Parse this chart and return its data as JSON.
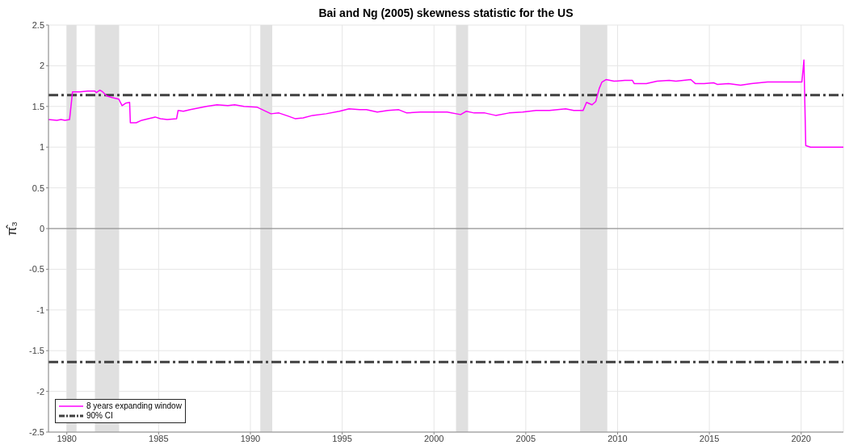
{
  "chart_data": {
    "type": "line",
    "title": "Bai and Ng (2005) skewness statistic for the US",
    "ylabel": "π̂₃",
    "x": [
      1979.0,
      1979.46,
      1979.68,
      1979.9,
      1980.15,
      1980.31,
      1980.7,
      1981.14,
      1981.51,
      1981.61,
      1981.8,
      1981.95,
      1982.17,
      1982.46,
      1982.83,
      1983.01,
      1983.2,
      1983.42,
      1983.46,
      1983.78,
      1984.08,
      1984.44,
      1984.81,
      1985.1,
      1985.47,
      1985.98,
      1986.06,
      1986.35,
      1986.72,
      1987.16,
      1987.6,
      1988.18,
      1988.77,
      1989.14,
      1989.65,
      1990.38,
      1991.12,
      1991.55,
      1992.07,
      1992.43,
      1992.87,
      1993.39,
      1994.12,
      1994.85,
      1995.37,
      1995.95,
      1996.32,
      1996.91,
      1997.49,
      1998.08,
      1998.52,
      1999.25,
      1999.99,
      2000.72,
      2001.45,
      2001.75,
      2002.19,
      2002.77,
      2003.36,
      2004.09,
      2004.83,
      2005.56,
      2006.29,
      2006.73,
      2007.17,
      2007.61,
      2008.12,
      2008.31,
      2008.61,
      2008.81,
      2009.0,
      2009.15,
      2009.37,
      2009.81,
      2010.39,
      2010.81,
      2010.91,
      2011.57,
      2012.15,
      2012.81,
      2013.18,
      2013.99,
      2014.24,
      2014.72,
      2015.23,
      2015.45,
      2016.04,
      2016.7,
      2017.29,
      2018.17,
      2018.9,
      2020.04,
      2020.15,
      2020.25,
      2020.51,
      2022.3
    ],
    "series": [
      {
        "name": "8 years expanding window",
        "color": "#ff00ff",
        "values": [
          1.34,
          1.33,
          1.34,
          1.33,
          1.34,
          1.68,
          1.68,
          1.69,
          1.69,
          1.67,
          1.7,
          1.68,
          1.63,
          1.61,
          1.59,
          1.51,
          1.54,
          1.55,
          1.3,
          1.3,
          1.33,
          1.35,
          1.37,
          1.35,
          1.34,
          1.35,
          1.45,
          1.44,
          1.46,
          1.48,
          1.5,
          1.52,
          1.51,
          1.52,
          1.5,
          1.49,
          1.41,
          1.42,
          1.38,
          1.35,
          1.36,
          1.39,
          1.41,
          1.44,
          1.47,
          1.46,
          1.46,
          1.43,
          1.45,
          1.46,
          1.42,
          1.43,
          1.43,
          1.43,
          1.4,
          1.44,
          1.42,
          1.42,
          1.39,
          1.42,
          1.43,
          1.45,
          1.45,
          1.46,
          1.47,
          1.45,
          1.45,
          1.55,
          1.52,
          1.56,
          1.72,
          1.8,
          1.83,
          1.81,
          1.82,
          1.82,
          1.78,
          1.78,
          1.81,
          1.82,
          1.81,
          1.83,
          1.78,
          1.78,
          1.79,
          1.77,
          1.78,
          1.76,
          1.78,
          1.8,
          1.8,
          1.8,
          2.07,
          1.02,
          1.0,
          1.0
        ]
      }
    ],
    "xlim": [
      1979.0,
      2022.3
    ],
    "xticks": [
      1980,
      1985,
      1990,
      1995,
      2000,
      2005,
      2010,
      2015,
      2020
    ],
    "ylim": [
      -2.5,
      2.5
    ],
    "yticks": [
      -2.5,
      -2,
      -1.5,
      -1,
      -0.5,
      0,
      0.5,
      1,
      1.5,
      2,
      2.5
    ],
    "ref_lines": [
      {
        "axis": "y",
        "value": 1.64,
        "label": "90% CI",
        "color": "#404040",
        "line_style": "dashed"
      },
      {
        "axis": "y",
        "value": -1.64,
        "color": "#404040",
        "line_style": "dashed"
      },
      {
        "axis": "y",
        "value": 0,
        "color": "#808080",
        "line_style": "solid"
      }
    ],
    "bands": [
      {
        "axis": "x",
        "from": 1980.0,
        "to": 1980.53,
        "color": "#e0e0e0"
      },
      {
        "axis": "x",
        "from": 1981.53,
        "to": 1982.85,
        "color": "#e0e0e0"
      },
      {
        "axis": "x",
        "from": 1990.54,
        "to": 1991.19,
        "color": "#e0e0e0"
      },
      {
        "axis": "x",
        "from": 2001.2,
        "to": 2001.86,
        "color": "#e0e0e0"
      },
      {
        "axis": "x",
        "from": 2007.96,
        "to": 2009.44,
        "color": "#e0e0e0"
      }
    ],
    "grid": true,
    "legend": "bottom left"
  }
}
